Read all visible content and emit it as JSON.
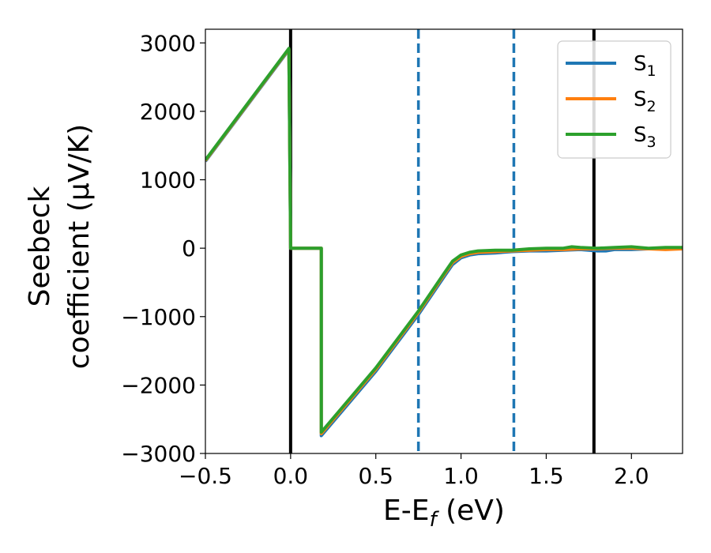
{
  "chart_data": {
    "type": "line",
    "ylabel_line1": "Seebeck",
    "ylabel_line2": "coefficient  (μV/K)",
    "xlabel": "E-E_f (eV)",
    "xlim": [
      -0.5,
      2.3
    ],
    "ylim": [
      -3000,
      3200
    ],
    "x_ticks": [
      -0.5,
      0.0,
      0.5,
      1.0,
      1.5,
      2.0
    ],
    "x_tick_labels": [
      "−0.5",
      "0.0",
      "0.5",
      "1.0",
      "1.5",
      "2.0"
    ],
    "y_ticks": [
      -3000,
      -2000,
      -1000,
      0,
      1000,
      2000,
      3000
    ],
    "y_tick_labels": [
      "−3000",
      "−2000",
      "−1000",
      "0",
      "1000",
      "2000",
      "3000"
    ],
    "grid": false,
    "legend_position": "top-right",
    "vlines": [
      {
        "x": 0.0,
        "color": "#000000",
        "style": "solid"
      },
      {
        "x": 0.75,
        "color": "#1f77b4",
        "style": "dashed"
      },
      {
        "x": 1.31,
        "color": "#1f77b4",
        "style": "dashed"
      },
      {
        "x": 1.78,
        "color": "#000000",
        "style": "solid"
      }
    ],
    "series": [
      {
        "name": "S_1",
        "color": "#1f77b4",
        "points": [
          [
            -0.5,
            1270
          ],
          [
            -0.01,
            2900
          ],
          [
            0.0,
            0
          ],
          [
            0.18,
            0
          ],
          [
            0.18,
            -2740
          ],
          [
            0.5,
            -1800
          ],
          [
            0.75,
            -970
          ],
          [
            0.9,
            -420
          ],
          [
            0.95,
            -240
          ],
          [
            1.0,
            -140
          ],
          [
            1.05,
            -100
          ],
          [
            1.1,
            -80
          ],
          [
            1.2,
            -70
          ],
          [
            1.3,
            -50
          ],
          [
            1.4,
            -40
          ],
          [
            1.5,
            -40
          ],
          [
            1.6,
            -30
          ],
          [
            1.7,
            -20
          ],
          [
            1.8,
            -40
          ],
          [
            1.85,
            -40
          ],
          [
            1.9,
            -20
          ],
          [
            2.0,
            -20
          ],
          [
            2.1,
            -10
          ],
          [
            2.2,
            -10
          ],
          [
            2.3,
            -10
          ]
        ]
      },
      {
        "name": "S_2",
        "color": "#ff7f0e",
        "points": [
          [
            -0.5,
            1280
          ],
          [
            -0.01,
            2910
          ],
          [
            0.0,
            0
          ],
          [
            0.18,
            0
          ],
          [
            0.18,
            -2710
          ],
          [
            0.5,
            -1770
          ],
          [
            0.75,
            -940
          ],
          [
            0.9,
            -390
          ],
          [
            0.95,
            -210
          ],
          [
            1.0,
            -120
          ],
          [
            1.05,
            -80
          ],
          [
            1.1,
            -60
          ],
          [
            1.2,
            -50
          ],
          [
            1.3,
            -40
          ],
          [
            1.4,
            -30
          ],
          [
            1.5,
            -20
          ],
          [
            1.6,
            -20
          ],
          [
            1.7,
            -10
          ],
          [
            1.8,
            -10
          ],
          [
            1.9,
            0
          ],
          [
            2.0,
            0
          ],
          [
            2.1,
            -10
          ],
          [
            2.2,
            -20
          ],
          [
            2.3,
            -10
          ]
        ]
      },
      {
        "name": "S_3",
        "color": "#2ca02c",
        "points": [
          [
            -0.5,
            1290
          ],
          [
            -0.01,
            2920
          ],
          [
            0.0,
            0
          ],
          [
            0.18,
            0
          ],
          [
            0.18,
            -2690
          ],
          [
            0.5,
            -1750
          ],
          [
            0.75,
            -920
          ],
          [
            0.9,
            -370
          ],
          [
            0.95,
            -190
          ],
          [
            1.0,
            -100
          ],
          [
            1.05,
            -60
          ],
          [
            1.1,
            -40
          ],
          [
            1.2,
            -30
          ],
          [
            1.3,
            -30
          ],
          [
            1.4,
            -10
          ],
          [
            1.5,
            0
          ],
          [
            1.6,
            0
          ],
          [
            1.65,
            20
          ],
          [
            1.7,
            10
          ],
          [
            1.8,
            0
          ],
          [
            1.9,
            10
          ],
          [
            2.0,
            20
          ],
          [
            2.1,
            0
          ],
          [
            2.2,
            10
          ],
          [
            2.3,
            10
          ]
        ]
      }
    ]
  }
}
